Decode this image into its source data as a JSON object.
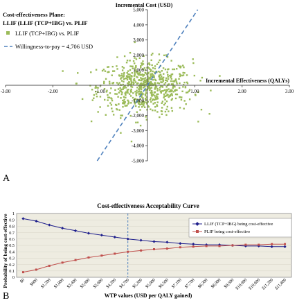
{
  "panels": {
    "a_label": "A",
    "b_label": "B"
  },
  "chart_data": [
    {
      "type": "scatter",
      "title": "Cost-effectiveness Plane:\nLLIF (LLIF (TCP+IBG) vs. PLIF",
      "title_lines": [
        "Cost-effectiveness Plane:",
        "LLIF (LLIF (TCP+IBG) vs. PLIF"
      ],
      "xlabel": "Incremental Effectiveness (QALYs)",
      "ylabel": "Incremental Cost (USD)",
      "xlim": [
        -3,
        3
      ],
      "ylim": [
        -5000,
        5000
      ],
      "x_ticks": [
        -3,
        -2,
        -1,
        1,
        2,
        3
      ],
      "x_tick_labels": [
        "-3.00",
        "-2.00",
        "-1.00",
        "1.00",
        "2.00",
        "3.00"
      ],
      "y_ticks": [
        -5000,
        -4000,
        -3000,
        -2000,
        -1000,
        1000,
        2000,
        3000,
        4000,
        5000
      ],
      "y_tick_labels": [
        "-5,000",
        "-4,000",
        "-3,000",
        "-2,000",
        "-1,000",
        "1,000",
        "2,000",
        "3,000",
        "4,000",
        "5,000"
      ],
      "legend": [
        {
          "label": "LLIF (TCP+IBG) vs. PLIF",
          "marker": "square",
          "color": "#9bbb59"
        },
        {
          "label": "Willingness-to-pay = 4,706 USD",
          "style": "dashed",
          "color": "#4f81bd"
        }
      ],
      "legend_position": "top-left",
      "wtp_slope": 4706,
      "scatter_cloud": {
        "n": 700,
        "mean_x": -0.05,
        "sd_x": 0.5,
        "mean_y": -100,
        "sd_y": 900,
        "color": "#9bbb59"
      }
    },
    {
      "type": "line",
      "title": "Cost-effectiveness Acceptability Curve",
      "xlabel": "WTP values (USD per QALY gained)",
      "ylabel": "Probability of being cost-effective",
      "ylim": [
        0,
        1
      ],
      "y_tick_labels": [
        "0",
        "0.1",
        "0.2",
        "0.3",
        "0.4",
        "0.5",
        "0.6",
        "0.7",
        "0.8",
        "0.9",
        "1"
      ],
      "categories": [
        "$0",
        "$600",
        "$1,200",
        "$1,800",
        "$2,400",
        "$3,000",
        "$3,600",
        "$4,200",
        "$4,700",
        "$5,300",
        "$5,900",
        "$6,500",
        "$7,100",
        "$7,700",
        "$8,300",
        "$8,900",
        "$9,500",
        "$10,000",
        "$10,600",
        "$11,200",
        "$11,800"
      ],
      "series": [
        {
          "name": "LLIF (TCP+IBG) being cost-effective",
          "color": "#1f1f8c",
          "marker": "diamond",
          "values": [
            0.92,
            0.88,
            0.82,
            0.77,
            0.73,
            0.69,
            0.66,
            0.63,
            0.6,
            0.58,
            0.56,
            0.55,
            0.53,
            0.52,
            0.51,
            0.51,
            0.5,
            0.49,
            0.49,
            0.48,
            0.48
          ]
        },
        {
          "name": "PLIF being cost-effective",
          "color": "#c0504d",
          "marker": "square",
          "values": [
            0.08,
            0.12,
            0.18,
            0.23,
            0.27,
            0.31,
            0.34,
            0.37,
            0.4,
            0.42,
            0.44,
            0.45,
            0.47,
            0.48,
            0.49,
            0.49,
            0.5,
            0.51,
            0.51,
            0.52,
            0.52
          ]
        }
      ],
      "vline_at": "$4,700",
      "legend_position": "top-right",
      "plot_background": "#eeece1"
    }
  ]
}
